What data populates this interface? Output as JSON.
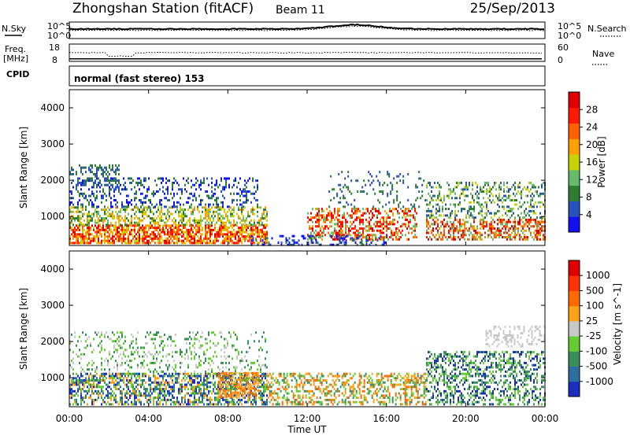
{
  "header": {
    "station": "Zhongshan Station (fitACF)",
    "beam": "Beam 11",
    "date": "25/Sep/2013"
  },
  "panels": {
    "nsky": {
      "label": "N.Sky",
      "ticks_left": [
        "10^5",
        "10^0"
      ],
      "ticks_right": [
        "10^5",
        "10^0"
      ],
      "right_label": "N.Search"
    },
    "freq": {
      "label_line1": "Freq.",
      "label_line2": "[MHz]",
      "ticks_left": [
        "18",
        "8"
      ],
      "ticks_right": [
        "60",
        "0"
      ],
      "right_label": "Nave"
    },
    "cpid": {
      "label": "CPID",
      "text": "normal (fast stereo) 153"
    }
  },
  "chart_data": [
    {
      "type": "heatmap",
      "id": "power",
      "ylabel": "Slant Range [km]",
      "yticks": [
        "4000",
        "3000",
        "2000",
        "1000"
      ],
      "ylim": [
        200,
        4500
      ],
      "colorbar": {
        "label": "Power [dB]",
        "ticks": [
          "28",
          "24",
          "20",
          "16",
          "12",
          "8",
          "4"
        ],
        "range": [
          0,
          30
        ],
        "colors": [
          "#1010f0",
          "#2a52be",
          "#2e7d32",
          "#66bb6a",
          "#c8d400",
          "#ffa000",
          "#ff6000",
          "#ff1a00",
          "#e00000"
        ]
      }
    },
    {
      "type": "heatmap",
      "id": "velocity",
      "ylabel": "Slant Range [km]",
      "yticks": [
        "4000",
        "3000",
        "2000",
        "1000"
      ],
      "ylim": [
        200,
        4500
      ],
      "colorbar": {
        "label": "Velocity [m s^-1]",
        "ticks": [
          "1000",
          "500",
          "100",
          "25",
          "-25",
          "-100",
          "-500",
          "-1000"
        ],
        "range": [
          -1000,
          1000
        ],
        "colors": [
          "#1a2fbf",
          "#2d6f9f",
          "#3a8f5a",
          "#66cc33",
          "#c8c8c8",
          "#ffa21a",
          "#ff6a00",
          "#ff3300",
          "#e00000"
        ]
      }
    }
  ],
  "xaxis": {
    "ticks": [
      "00:00",
      "04:00",
      "08:00",
      "12:00",
      "16:00",
      "20:00",
      "00:00"
    ],
    "label": "Time UT"
  }
}
